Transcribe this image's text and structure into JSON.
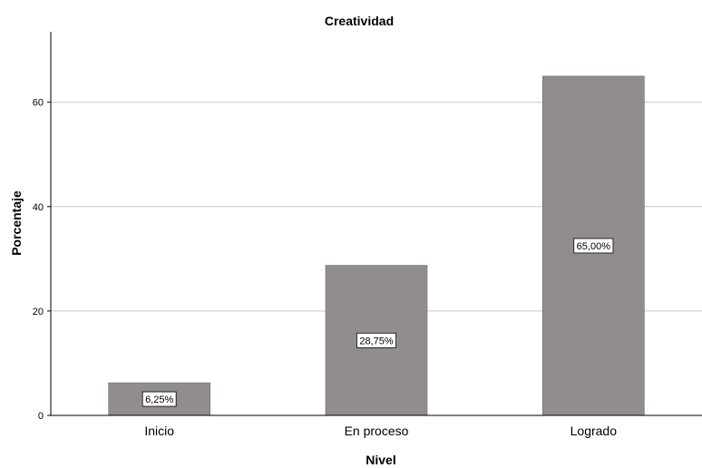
{
  "chart_data": {
    "type": "bar",
    "title": "Creatividad",
    "xlabel": "Nivel",
    "ylabel": "Porcentaje",
    "categories": [
      "Inicio",
      "En proceso",
      "Logrado"
    ],
    "values": [
      6.25,
      28.75,
      65.0
    ],
    "data_labels": [
      "6,25%",
      "28,75%",
      "65,00%"
    ],
    "ylim": [
      0,
      73.5
    ],
    "yticks": [
      0,
      20,
      40,
      60
    ],
    "grid": "horizontal",
    "legend": "none",
    "colors": {
      "bar": "#918d8c",
      "bar_edge": "#6f6b6a",
      "grid": "#c8c8c8",
      "axis": "#000000"
    }
  }
}
